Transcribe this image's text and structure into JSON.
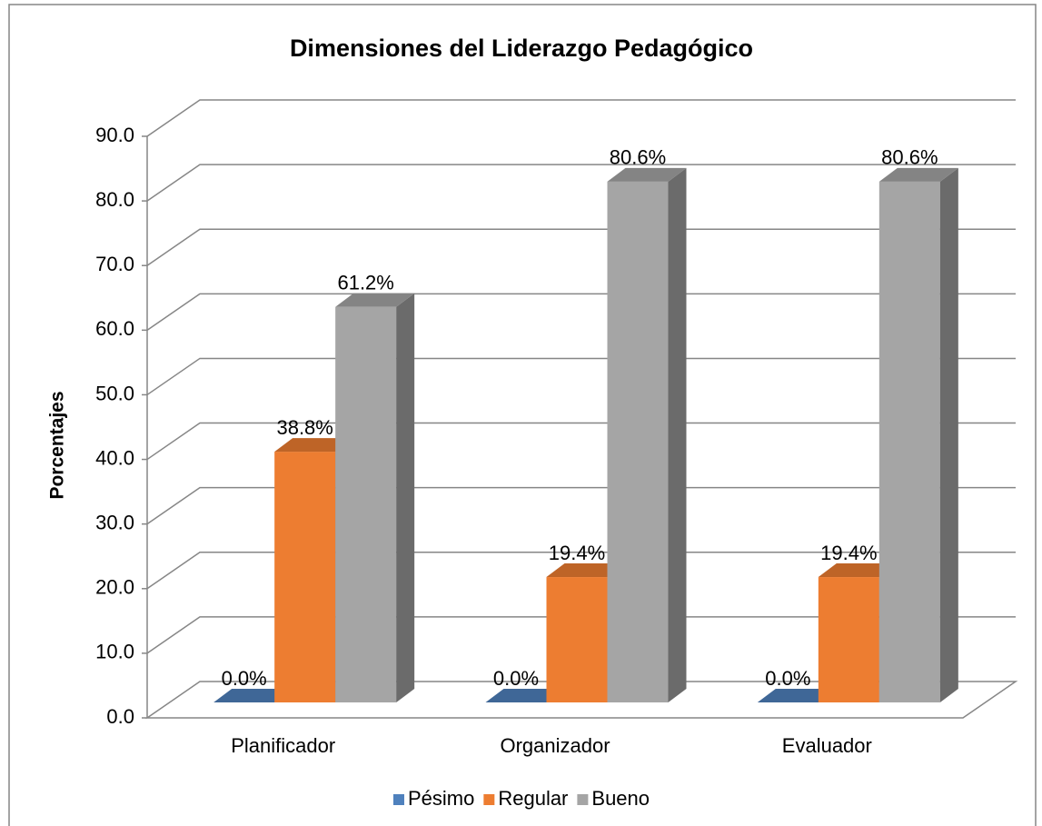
{
  "chart_data": {
    "type": "bar3d",
    "title": "Dimensiones del Liderazgo Pedagógico",
    "y_label": "Porcentajes",
    "categories": [
      "Planificador",
      "Organizador",
      "Evaluador"
    ],
    "series": [
      {
        "name": "Pésimo",
        "color": "#4f81bd",
        "values": [
          0,
          0,
          0
        ],
        "value_labels": [
          "0.0%",
          "0.0%",
          "0.0%"
        ]
      },
      {
        "name": "Regular",
        "color": "#ed7d31",
        "values": [
          38.8,
          19.4,
          19.4
        ],
        "value_labels": [
          "38.8%",
          "19.4%",
          "19.4%"
        ]
      },
      {
        "name": "Bueno",
        "color": "#a5a5a5",
        "values": [
          61.2,
          80.6,
          80.6
        ],
        "value_labels": [
          "61.2%",
          "80.6%",
          "80.6%"
        ]
      }
    ],
    "ylim": [
      0,
      90
    ],
    "yticks": [
      {
        "value": 0,
        "label": "0.0"
      },
      {
        "value": 10,
        "label": "10.0"
      },
      {
        "value": 20,
        "label": "20.0"
      },
      {
        "value": 30,
        "label": "30.0"
      },
      {
        "value": 40,
        "label": "40.0"
      },
      {
        "value": 50,
        "label": "50.0"
      },
      {
        "value": 60,
        "label": "60.0"
      },
      {
        "value": 70,
        "label": "70.0"
      },
      {
        "value": 80,
        "label": "80.0"
      },
      {
        "value": 90,
        "label": "90.0"
      }
    ],
    "grid": true,
    "legend": "bottom"
  }
}
